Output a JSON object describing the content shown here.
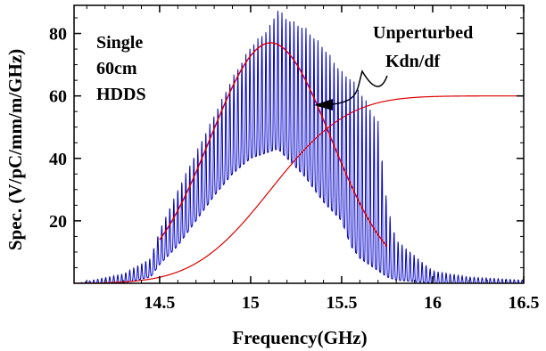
{
  "chart_data": {
    "type": "line",
    "xlabel": "Frequency(GHz)",
    "ylabel": "Spec. (V/pC/mm/m/GHz)",
    "xlim": [
      14.03,
      16.5
    ],
    "ylim": [
      0,
      89
    ],
    "x_ticks": [
      14.5,
      15,
      15.5,
      16,
      16.5
    ],
    "x_tick_labels": [
      "14.5",
      "15",
      "15.5",
      "16",
      "16.5"
    ],
    "y_ticks": [
      20,
      40,
      60,
      80
    ],
    "y_tick_labels": [
      "20",
      "40",
      "60",
      "80"
    ],
    "grid": false,
    "annotations": {
      "left_label": [
        "Single",
        "60cm",
        "HDDS"
      ],
      "right_label": [
        "Unperturbed",
        "Kdn/df"
      ]
    },
    "series": [
      {
        "color": "#0000cc",
        "description_values": "oscillating spectrum",
        "envelope_x": [
          14.05,
          14.3,
          14.45,
          14.5,
          14.6,
          14.7,
          14.8,
          14.9,
          15.0,
          15.1,
          15.15,
          15.2,
          15.3,
          15.4,
          15.5,
          15.55,
          15.6,
          15.7,
          15.75,
          15.8,
          16.0,
          16.2,
          16.5
        ],
        "envelope_y": [
          0,
          3,
          8,
          17,
          30,
          42,
          54,
          66,
          76,
          82,
          88,
          85,
          82,
          76,
          68,
          66,
          62,
          52,
          25,
          14,
          4,
          2,
          1
        ],
        "trough_y": [
          0,
          0,
          2,
          6,
          12,
          20,
          28,
          35,
          40,
          42,
          43,
          40,
          34,
          26,
          20,
          12,
          8,
          4,
          2,
          1,
          0,
          0,
          0
        ],
        "line_start_x": 14.05,
        "line_end_x": 16.5,
        "period_ghz": 0.022
      },
      {
        "color": "#dd0000",
        "description_values": "gaussian fit",
        "x_start": 14.5,
        "x_end": 15.75,
        "peak_x": 15.11,
        "peak_y": 77,
        "sigma": 0.33
      },
      {
        "color": "#dd0000",
        "description_values": "integrated Kdn/df",
        "x_start": 14.03,
        "x_end": 16.5,
        "center_x": 15.11,
        "sigma": 0.33,
        "max_y": 60
      }
    ]
  }
}
